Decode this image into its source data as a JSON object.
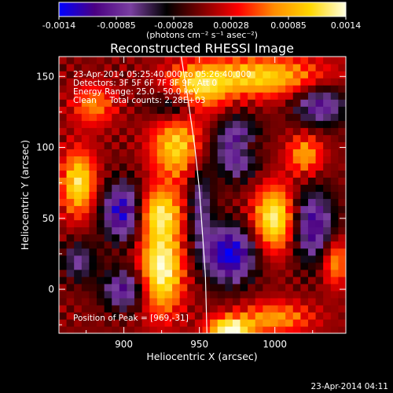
{
  "chart_data": {
    "type": "heatmap",
    "title": "Reconstructed RHESSI Image",
    "xlabel": "Heliocentric X (arcsec)",
    "ylabel": "Heliocentric Y (arcsec)",
    "xlim": [
      857,
      1047
    ],
    "ylim": [
      -31,
      164
    ],
    "x_ticks": [
      900,
      950,
      1000
    ],
    "y_ticks": [
      0,
      50,
      100,
      150
    ],
    "grid": false,
    "info_lines": [
      "23-Apr-2014 05:25:40.000 to 05:26:40.000",
      "Detectors: 3F 5F 6F 7F 8F 9F, Att 0",
      "Energy Range: 25.0 - 50.0 keV",
      "Clean     Total counts: 2.28E+03"
    ],
    "peak_label": "Position of Peak = [969,-31]",
    "peak": [
      969,
      -31
    ],
    "limb_curve": [
      [
        938,
        164
      ],
      [
        943,
        130
      ],
      [
        947,
        100
      ],
      [
        950,
        70
      ],
      [
        952,
        40
      ],
      [
        954,
        10
      ],
      [
        955,
        -31
      ]
    ],
    "colorbar": {
      "units": "(photons cm⁻² s⁻¹ asec⁻²)",
      "range": [
        -0.0014,
        0.0014
      ],
      "ticks": [
        "-0.0014",
        "-0.00085",
        "-0.00028",
        "0.00028",
        "0.00085",
        "0.0014"
      ],
      "colors": [
        "#0000ff",
        "#4b0082",
        "#7a3fa0",
        "#000000",
        "#800000",
        "#ff0000",
        "#ff8c00",
        "#ffd700",
        "#ffffe0"
      ]
    },
    "sources": [
      {
        "x": 925,
        "y": 15,
        "sx": 10,
        "sy": 22,
        "a": 1.0
      },
      {
        "x": 922,
        "y": 55,
        "sx": 12,
        "sy": 12,
        "a": 0.75
      },
      {
        "x": 935,
        "y": 100,
        "sx": 12,
        "sy": 16,
        "a": 0.75
      },
      {
        "x": 948,
        "y": 140,
        "sx": 14,
        "sy": 12,
        "a": 0.7
      },
      {
        "x": 990,
        "y": 150,
        "sx": 30,
        "sy": 10,
        "a": 0.75
      },
      {
        "x": 1000,
        "y": 50,
        "sx": 10,
        "sy": 16,
        "a": 0.95
      },
      {
        "x": 870,
        "y": 75,
        "sx": 8,
        "sy": 16,
        "a": 0.85
      },
      {
        "x": 880,
        "y": 130,
        "sx": 10,
        "sy": 10,
        "a": 0.5
      },
      {
        "x": 970,
        "y": -28,
        "sx": 10,
        "sy": 6,
        "a": 1.0
      },
      {
        "x": 1020,
        "y": 95,
        "sx": 8,
        "sy": 10,
        "a": 0.6
      },
      {
        "x": 1000,
        "y": -20,
        "sx": 18,
        "sy": 8,
        "a": 0.55
      },
      {
        "x": 1040,
        "y": 20,
        "sx": 6,
        "sy": 12,
        "a": 0.6
      },
      {
        "x": 980,
        "y": 100,
        "sx": 8,
        "sy": 6,
        "a": 0.45
      },
      {
        "x": 900,
        "y": 0,
        "sx": 10,
        "sy": 10,
        "a": -0.7
      },
      {
        "x": 900,
        "y": 55,
        "sx": 10,
        "sy": 14,
        "a": -1.0
      },
      {
        "x": 970,
        "y": 25,
        "sx": 12,
        "sy": 14,
        "a": -1.0
      },
      {
        "x": 975,
        "y": 100,
        "sx": 10,
        "sy": 14,
        "a": -0.9
      },
      {
        "x": 1025,
        "y": 45,
        "sx": 10,
        "sy": 18,
        "a": -0.8
      },
      {
        "x": 935,
        "y": 130,
        "sx": 12,
        "sy": 8,
        "a": -0.6
      },
      {
        "x": 1030,
        "y": 130,
        "sx": 12,
        "sy": 10,
        "a": -0.7
      },
      {
        "x": 950,
        "y": 60,
        "sx": 6,
        "sy": 22,
        "a": -0.55
      },
      {
        "x": 870,
        "y": 20,
        "sx": 8,
        "sy": 10,
        "a": -0.5
      }
    ]
  },
  "footer": {
    "timestamp": "23-Apr-2014 04:11"
  }
}
